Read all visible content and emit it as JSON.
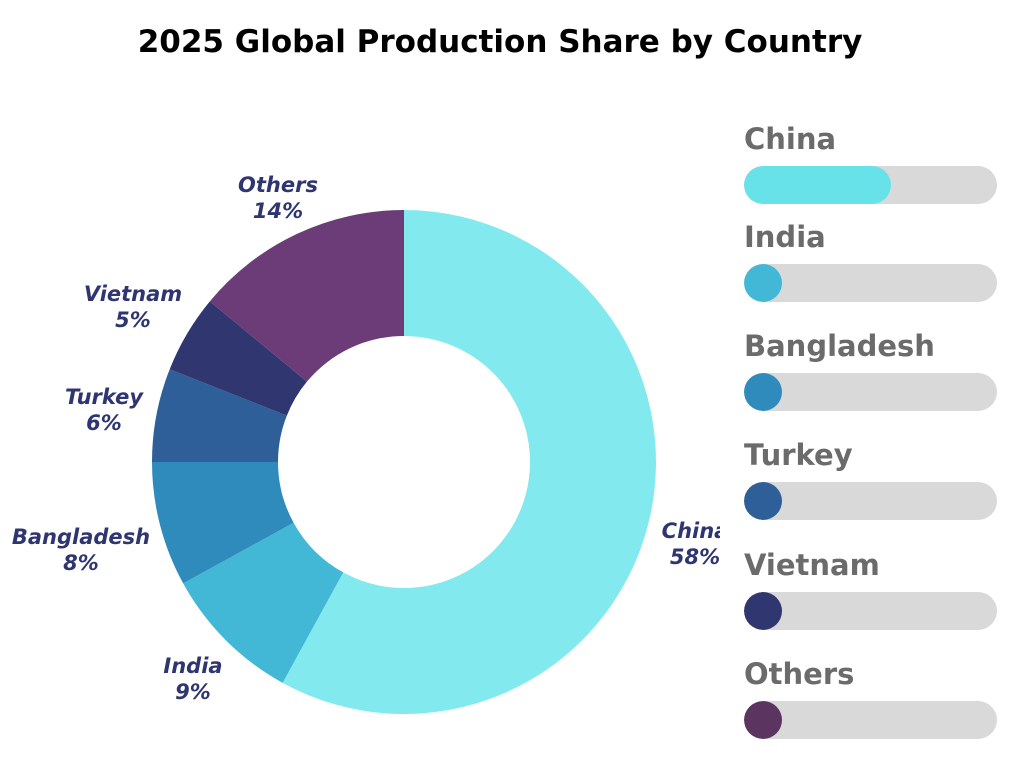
{
  "title": "2025 Global Production Share by Country",
  "chart_data": {
    "type": "pie",
    "variant": "donut",
    "title": "2025 Global Production Share by Country",
    "unit": "%",
    "slices": [
      {
        "label": "China",
        "value": 58,
        "value_label": "58%",
        "color": "#82eaee"
      },
      {
        "label": "India",
        "value": 9,
        "value_label": "9%",
        "color": "#42b8d6"
      },
      {
        "label": "Bangladesh",
        "value": 8,
        "value_label": "8%",
        "color": "#2e8bbc"
      },
      {
        "label": "Turkey",
        "value": 6,
        "value_label": "6%",
        "color": "#2e5f98"
      },
      {
        "label": "Vietnam",
        "value": 5,
        "value_label": "5%",
        "color": "#30366f"
      },
      {
        "label": "Others",
        "value": 14,
        "value_label": "14%",
        "color": "#6b3c78"
      }
    ],
    "legend_placement": "right",
    "legend_style": "progress-bars"
  },
  "legend": {
    "track_color": "#d9d9d9",
    "items": [
      {
        "label": "China",
        "fill_fraction": 0.58,
        "color": "#67e2e8"
      },
      {
        "label": "India",
        "fill_fraction": 0.09,
        "color": "#42b8d6"
      },
      {
        "label": "Bangladesh",
        "fill_fraction": 0.08,
        "color": "#2e8bbc"
      },
      {
        "label": "Turkey",
        "fill_fraction": 0.06,
        "color": "#2e5f98"
      },
      {
        "label": "Vietnam",
        "fill_fraction": 0.05,
        "color": "#30366f"
      },
      {
        "label": "Others",
        "fill_fraction": 0.14,
        "color": "#5b345f"
      }
    ]
  }
}
